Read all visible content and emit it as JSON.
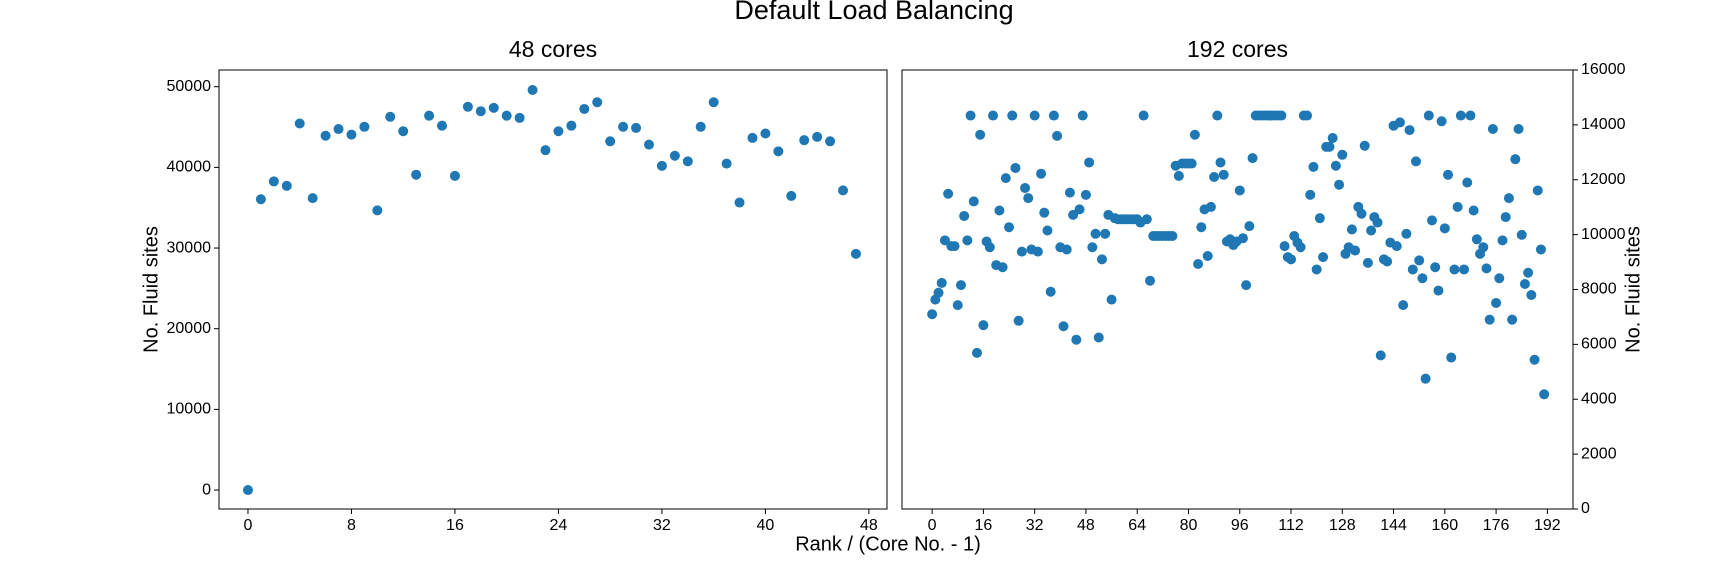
{
  "title": "Default Load Balancing",
  "xlabel": "Rank / (Core No. - 1)",
  "chart_data": [
    {
      "type": "scatter",
      "title": "48 cores",
      "ylabel": "No. Fluid sites",
      "yaxis_side": "left",
      "color": "#1f77b4",
      "grid": false,
      "xlim": [
        -2.24,
        49.4
      ],
      "ylim": [
        -2350,
        52070
      ],
      "xticks": [
        0,
        8,
        16,
        24,
        32,
        40,
        48
      ],
      "yticks": [
        0,
        10000,
        20000,
        30000,
        40000,
        50000
      ],
      "x": [
        0,
        1,
        2,
        3,
        4,
        5,
        6,
        7,
        8,
        9,
        10,
        11,
        12,
        13,
        14,
        15,
        16,
        17,
        18,
        19,
        20,
        21,
        22,
        23,
        24,
        25,
        26,
        27,
        28,
        29,
        30,
        31,
        32,
        33,
        34,
        35,
        36,
        37,
        38,
        39,
        40,
        41,
        42,
        43,
        44,
        45,
        46,
        47
      ],
      "values": [
        0,
        36050,
        38260,
        37710,
        45440,
        36190,
        43920,
        44750,
        44060,
        45030,
        34670,
        46270,
        44480,
        39090,
        46410,
        45170,
        38950,
        47510,
        46960,
        47380,
        46410,
        46130,
        49590,
        42130,
        44480,
        45170,
        47240,
        48070,
        43230,
        45030,
        44890,
        42820,
        40190,
        41440,
        40750,
        45030,
        48070,
        40470,
        35640,
        43650,
        44200,
        41990,
        36460,
        43370,
        43780,
        43230,
        37150,
        29280
      ]
    },
    {
      "type": "scatter",
      "title": "192 cores",
      "ylabel": "No. Fluid sites",
      "yaxis_side": "right",
      "color": "#1f77b4",
      "grid": false,
      "xlim": [
        -9.4,
        200.0
      ],
      "ylim": [
        0,
        16000
      ],
      "xticks": [
        0,
        16,
        32,
        48,
        64,
        80,
        96,
        112,
        128,
        144,
        160,
        176,
        192
      ],
      "yticks": [
        0,
        2000,
        4000,
        6000,
        8000,
        10000,
        12000,
        14000,
        16000
      ],
      "x": [
        0,
        1,
        2,
        3,
        4,
        5,
        6,
        7,
        8,
        9,
        10,
        11,
        12,
        13,
        14,
        15,
        16,
        17,
        18,
        19,
        20,
        21,
        22,
        23,
        24,
        25,
        26,
        27,
        28,
        29,
        30,
        31,
        32,
        33,
        34,
        35,
        36,
        37,
        38,
        39,
        40,
        41,
        42,
        43,
        44,
        45,
        46,
        47,
        48,
        49,
        50,
        51,
        52,
        53,
        54,
        55,
        56,
        57,
        58,
        59,
        60,
        61,
        62,
        63,
        64,
        65,
        66,
        67,
        68,
        69,
        70,
        71,
        72,
        73,
        74,
        75,
        76,
        77,
        78,
        79,
        80,
        81,
        82,
        83,
        84,
        85,
        86,
        87,
        88,
        89,
        90,
        91,
        92,
        93,
        94,
        95,
        96,
        97,
        98,
        99,
        100,
        101,
        102,
        103,
        104,
        105,
        106,
        107,
        108,
        109,
        110,
        111,
        112,
        113,
        114,
        115,
        116,
        117,
        118,
        119,
        120,
        121,
        122,
        123,
        124,
        125,
        126,
        127,
        128,
        129,
        130,
        131,
        132,
        133,
        134,
        135,
        136,
        137,
        138,
        139,
        140,
        141,
        142,
        143,
        144,
        145,
        146,
        147,
        148,
        149,
        150,
        151,
        152,
        153,
        154,
        155,
        156,
        157,
        158,
        159,
        160,
        161,
        162,
        163,
        164,
        165,
        166,
        167,
        168,
        169,
        170,
        171,
        172,
        173,
        174,
        175,
        176,
        177,
        178,
        179,
        180,
        181,
        182,
        183,
        184,
        185,
        186,
        187,
        188,
        189,
        190,
        191
      ],
      "values": [
        7100,
        7630,
        7880,
        8240,
        9790,
        11490,
        9580,
        9580,
        7430,
        8160,
        10680,
        9790,
        14340,
        11210,
        5690,
        13640,
        6700,
        9750,
        9540,
        14340,
        8890,
        10880,
        8810,
        12060,
        10270,
        14340,
        12430,
        6860,
        9380,
        11700,
        11330,
        9460,
        14340,
        9380,
        12220,
        10800,
        10150,
        7920,
        14340,
        13600,
        9540,
        6660,
        9460,
        11530,
        10720,
        6170,
        10920,
        14340,
        11450,
        12630,
        9540,
        10030,
        6250,
        9100,
        10030,
        10720,
        7630,
        10600,
        10560,
        10560,
        10560,
        10560,
        10560,
        10560,
        10560,
        10440,
        14340,
        10560,
        8320,
        9950,
        9950,
        9950,
        9950,
        9950,
        9950,
        9950,
        12510,
        12140,
        12590,
        12590,
        12590,
        12590,
        13640,
        8930,
        10270,
        10920,
        9220,
        11010,
        12100,
        14340,
        12630,
        12180,
        9750,
        9830,
        9620,
        9750,
        11610,
        9870,
        8160,
        10310,
        12790,
        14340,
        14340,
        14340,
        14340,
        14340,
        14340,
        14340,
        14340,
        14340,
        9580,
        9180,
        9100,
        9950,
        9710,
        9540,
        14340,
        14340,
        11450,
        12470,
        8730,
        10600,
        9180,
        13200,
        13200,
        13520,
        12510,
        11820,
        12910,
        9300,
        9540,
        10190,
        9420,
        11010,
        10760,
        13240,
        8970,
        10150,
        10640,
        10440,
        5600,
        9100,
        9020,
        9710,
        13970,
        9580,
        14090,
        7430,
        10030,
        13810,
        8730,
        12670,
        9060,
        8410,
        4750,
        14340,
        10520,
        8810,
        7960,
        14130,
        10230,
        12180,
        5520,
        8730,
        11010,
        14340,
        8730,
        11900,
        14340,
        10880,
        9830,
        9300,
        9540,
        8770,
        6900,
        13850,
        7510,
        8410,
        9790,
        10640,
        11330,
        6900,
        12750,
        13850,
        9990,
        8200,
        8610,
        7800,
        5440,
        11610,
        9460,
        4180
      ]
    }
  ]
}
